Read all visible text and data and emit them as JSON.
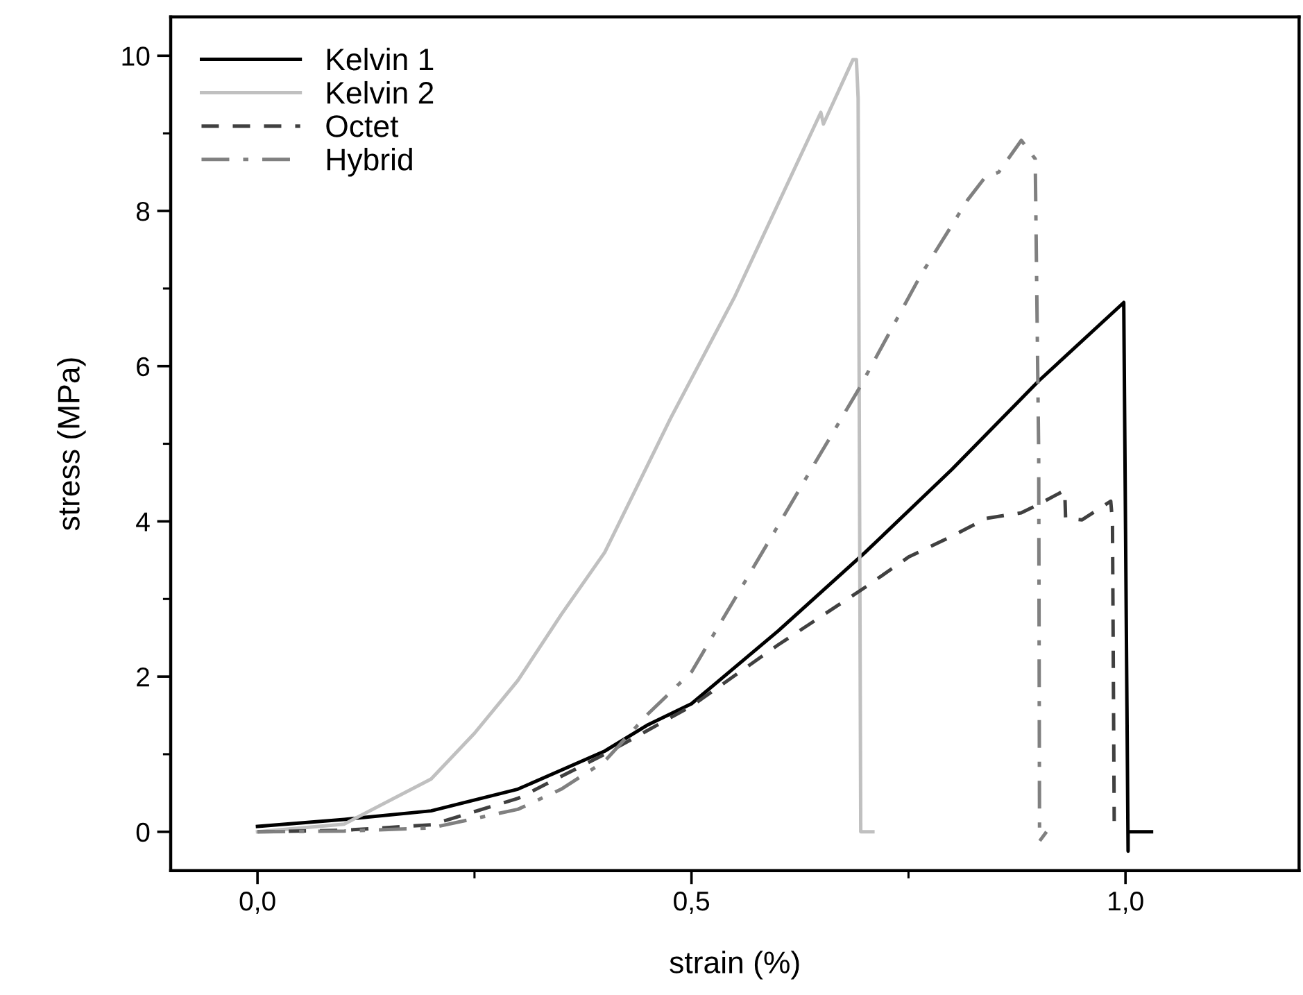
{
  "chart_data": {
    "type": "line",
    "xlabel": "strain (%)",
    "ylabel": "stress (MPa)",
    "xlim": [
      -0.1,
      1.2
    ],
    "ylim": [
      -0.5,
      10.5
    ],
    "xticks": [
      {
        "value": 0.0,
        "label": "0,0"
      },
      {
        "value": 0.5,
        "label": "0,5"
      },
      {
        "value": 1.0,
        "label": "1,0"
      }
    ],
    "yticks": [
      0,
      2,
      4,
      6,
      8,
      10
    ],
    "grid": false,
    "legend": "top left",
    "series": [
      {
        "name": "Kelvin 1",
        "color": "#000000",
        "line_style": "solid",
        "x": [
          0,
          0.1,
          0.2,
          0.3,
          0.4,
          0.45,
          0.5,
          0.6,
          0.7,
          0.8,
          0.9,
          0.998,
          1.003,
          1.003,
          1.03
        ],
        "values": [
          0.07,
          0.16,
          0.27,
          0.55,
          1.04,
          1.38,
          1.65,
          2.59,
          3.6,
          4.67,
          5.81,
          6.82,
          -0.25,
          0,
          0
        ]
      },
      {
        "name": "Kelvin 2",
        "color": "#c0c0c0",
        "line_style": "solid",
        "x": [
          0,
          0.1,
          0.2,
          0.25,
          0.3,
          0.35,
          0.4,
          0.476,
          0.55,
          0.649,
          0.652,
          0.686,
          0.69,
          0.692,
          0.695,
          0.709
        ],
        "values": [
          0.0,
          0.1,
          0.68,
          1.27,
          1.95,
          2.8,
          3.6,
          5.33,
          6.9,
          9.27,
          9.12,
          9.95,
          9.95,
          9.45,
          0,
          0
        ]
      },
      {
        "name": "Octet",
        "color": "#404040",
        "line_style": "dashed",
        "x": [
          0,
          0.1,
          0.2,
          0.3,
          0.4,
          0.5,
          0.6,
          0.7,
          0.75,
          0.8,
          0.84,
          0.88,
          0.9,
          0.93,
          0.931,
          0.95,
          0.983,
          0.985,
          0.987
        ],
        "values": [
          0.0,
          0.02,
          0.09,
          0.43,
          1.0,
          1.62,
          2.41,
          3.15,
          3.54,
          3.81,
          4.04,
          4.11,
          4.22,
          4.4,
          4.04,
          4.02,
          4.26,
          4.0,
          0.14
        ]
      },
      {
        "name": "Hybrid",
        "color": "#808080",
        "line_style": "dashdot",
        "x": [
          0,
          0.1,
          0.2,
          0.3,
          0.35,
          0.4,
          0.45,
          0.5,
          0.6,
          0.649,
          0.692,
          0.764,
          0.818,
          0.838,
          0.854,
          0.88,
          0.896,
          0.9,
          0.901,
          0.909
        ],
        "values": [
          0.0,
          0.01,
          0.05,
          0.29,
          0.55,
          0.91,
          1.52,
          2.06,
          3.95,
          4.88,
          5.69,
          7.17,
          8.14,
          8.43,
          8.5,
          8.91,
          8.67,
          4.88,
          -0.12,
          0
        ]
      }
    ]
  }
}
